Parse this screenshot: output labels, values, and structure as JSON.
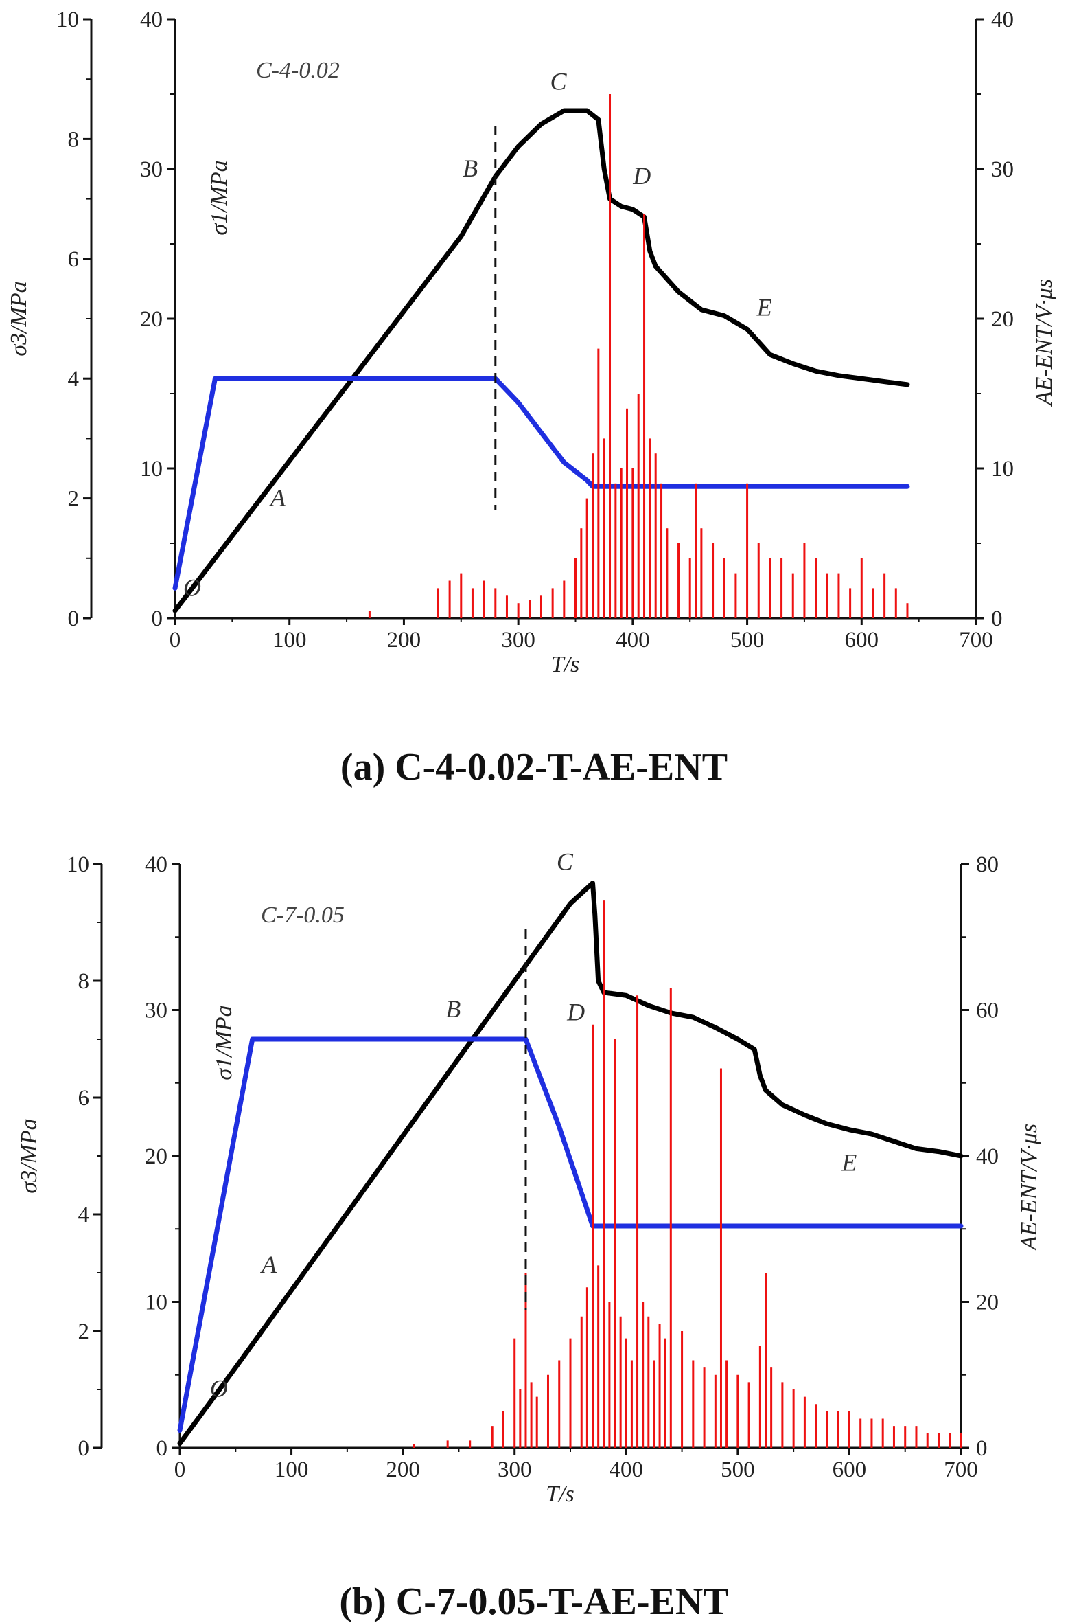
{
  "chart_data": [
    {
      "type": "line",
      "panel_tag": "C-4-0.02",
      "caption": "(a) C-4-0.02-T-AE-ENT",
      "xlabel": "T/s",
      "xlim": [
        0,
        700
      ],
      "xticks": [
        0,
        100,
        200,
        300,
        400,
        500,
        600,
        700
      ],
      "y_axes": [
        {
          "id": "s3",
          "label": "σ3/MPa",
          "lim": [
            0,
            10
          ],
          "ticks": [
            0,
            2,
            4,
            6,
            8,
            10
          ]
        },
        {
          "id": "s1",
          "label": "σ1/MPa",
          "lim": [
            0,
            40
          ],
          "ticks": [
            0,
            10,
            20,
            30,
            40
          ]
        },
        {
          "id": "ae",
          "label": "AE-ENT/V·μs",
          "lim": [
            0,
            40
          ],
          "ticks": [
            0,
            10,
            20,
            30,
            40
          ]
        }
      ],
      "colors": {
        "s1": "#000000",
        "s3": "#1f2fe0",
        "ae": "#ee1111"
      },
      "series": [
        {
          "name": "σ1",
          "axis": "s1",
          "x": [
            0,
            50,
            100,
            150,
            200,
            250,
            280,
            300,
            320,
            340,
            360,
            370,
            375,
            380,
            390,
            400,
            410,
            415,
            420,
            440,
            460,
            480,
            500,
            520,
            540,
            560,
            580,
            600,
            620,
            640
          ],
          "y": [
            0.5,
            5.5,
            10.5,
            15.5,
            20.5,
            25.5,
            29.5,
            31.5,
            33,
            33.9,
            33.9,
            33.3,
            30,
            28,
            27.5,
            27.3,
            26.8,
            24.5,
            23.5,
            21.8,
            20.6,
            20.2,
            19.3,
            17.6,
            17,
            16.5,
            16.2,
            16,
            15.8,
            15.6
          ]
        },
        {
          "name": "σ3",
          "axis": "s3",
          "x": [
            0,
            35,
            280,
            300,
            320,
            340,
            360,
            365,
            400,
            500,
            600,
            640
          ],
          "y": [
            0.5,
            4.0,
            4.0,
            3.6,
            3.1,
            2.6,
            2.3,
            2.2,
            2.2,
            2.2,
            2.2,
            2.2
          ]
        },
        {
          "name": "AE-ENT",
          "axis": "ae",
          "type": "bar",
          "x": [
            170,
            230,
            240,
            250,
            260,
            270,
            280,
            290,
            300,
            310,
            320,
            330,
            340,
            350,
            355,
            360,
            365,
            370,
            375,
            380,
            385,
            390,
            395,
            400,
            405,
            410,
            415,
            420,
            425,
            430,
            440,
            450,
            455,
            460,
            470,
            480,
            490,
            500,
            510,
            520,
            530,
            540,
            550,
            560,
            570,
            580,
            590,
            600,
            610,
            620,
            630,
            640
          ],
          "y": [
            0.5,
            2,
            2.5,
            3,
            2,
            2.5,
            2,
            1.5,
            1,
            1.2,
            1.5,
            2,
            2.5,
            4,
            6,
            8,
            11,
            18,
            12,
            35,
            9,
            10,
            14,
            10,
            15,
            27,
            12,
            11,
            9,
            6,
            5,
            4,
            9,
            6,
            5,
            4,
            3,
            9,
            5,
            4,
            4,
            3,
            5,
            4,
            3,
            3,
            2,
            4,
            2,
            3,
            2,
            1
          ]
        }
      ],
      "annotations": [
        {
          "text": "O",
          "x": 15,
          "y": 1.5
        },
        {
          "text": "A",
          "x": 90,
          "y": 7.5
        },
        {
          "text": "B",
          "x": 258,
          "y": 29.5
        },
        {
          "text": "C",
          "x": 335,
          "y": 35.3
        },
        {
          "text": "D",
          "x": 408,
          "y": 29
        },
        {
          "text": "E",
          "x": 515,
          "y": 20.2
        }
      ],
      "vline_x": 280
    },
    {
      "type": "line",
      "panel_tag": "C-7-0.05",
      "caption": "(b) C-7-0.05-T-AE-ENT",
      "xlabel": "T/s",
      "xlim": [
        0,
        700
      ],
      "xticks": [
        0,
        100,
        200,
        300,
        400,
        500,
        600,
        700
      ],
      "y_axes": [
        {
          "id": "s3",
          "label": "σ3/MPa",
          "lim": [
            0,
            10
          ],
          "ticks": [
            0,
            2,
            4,
            6,
            8,
            10
          ]
        },
        {
          "id": "s1",
          "label": "σ1/MPa",
          "lim": [
            0,
            40
          ],
          "ticks": [
            0,
            10,
            20,
            30,
            40
          ]
        },
        {
          "id": "ae",
          "label": "AE-ENT/V·μs",
          "lim": [
            0,
            80
          ],
          "ticks": [
            0,
            20,
            40,
            60,
            80
          ]
        }
      ],
      "colors": {
        "s1": "#000000",
        "s3": "#1f2fe0",
        "ae": "#ee1111"
      },
      "series": [
        {
          "name": "σ1",
          "axis": "s1",
          "x": [
            0,
            50,
            100,
            150,
            200,
            250,
            300,
            350,
            370,
            372,
            375,
            380,
            400,
            420,
            440,
            460,
            480,
            500,
            515,
            520,
            525,
            540,
            560,
            580,
            600,
            620,
            640,
            660,
            680,
            700
          ],
          "y": [
            0.3,
            5.5,
            10.8,
            16.1,
            21.4,
            26.7,
            32,
            37.3,
            38.7,
            36.5,
            32,
            31.2,
            31,
            30.3,
            29.8,
            29.5,
            28.8,
            28,
            27.3,
            25.5,
            24.5,
            23.5,
            22.8,
            22.2,
            21.8,
            21.5,
            21,
            20.5,
            20.3,
            20
          ]
        },
        {
          "name": "σ3",
          "axis": "s3",
          "x": [
            0,
            65,
            100,
            200,
            300,
            310,
            340,
            370,
            400,
            500,
            600,
            700
          ],
          "y": [
            0.3,
            7.0,
            7.0,
            7.0,
            7.0,
            7.0,
            5.5,
            3.8,
            3.8,
            3.8,
            3.8,
            3.8
          ]
        },
        {
          "name": "AE-ENT",
          "axis": "ae",
          "type": "bar",
          "x": [
            210,
            240,
            260,
            280,
            290,
            300,
            305,
            310,
            315,
            320,
            330,
            340,
            350,
            360,
            365,
            370,
            375,
            380,
            385,
            390,
            395,
            400,
            405,
            410,
            415,
            420,
            425,
            430,
            435,
            440,
            450,
            460,
            470,
            480,
            485,
            490,
            500,
            510,
            520,
            525,
            530,
            540,
            550,
            560,
            570,
            580,
            590,
            600,
            610,
            620,
            630,
            640,
            650,
            660,
            670,
            680,
            690,
            700
          ],
          "y": [
            0.5,
            1,
            1,
            3,
            5,
            15,
            8,
            24,
            9,
            7,
            10,
            12,
            15,
            18,
            22,
            58,
            25,
            75,
            20,
            56,
            18,
            15,
            12,
            62,
            20,
            18,
            12,
            17,
            15,
            63,
            16,
            12,
            11,
            10,
            52,
            12,
            10,
            9,
            14,
            24,
            11,
            9,
            8,
            7,
            6,
            5,
            5,
            5,
            4,
            4,
            4,
            3,
            3,
            3,
            2,
            2,
            2,
            2
          ]
        }
      ],
      "annotations": [
        {
          "text": "O",
          "x": 35,
          "y": 3.5
        },
        {
          "text": "A",
          "x": 80,
          "y": 12
        },
        {
          "text": "B",
          "x": 245,
          "y": 29.5
        },
        {
          "text": "C",
          "x": 345,
          "y": 39.6
        },
        {
          "text": "D",
          "x": 355,
          "y": 29.3
        },
        {
          "text": "E",
          "x": 600,
          "y": 19
        }
      ],
      "vline_x": 310
    }
  ]
}
